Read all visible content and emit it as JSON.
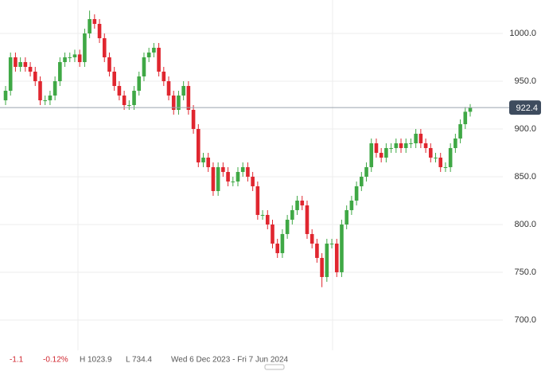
{
  "chart_data": {
    "type": "candlestick",
    "open": [
      930,
      940,
      975,
      965,
      970,
      965,
      960,
      950,
      930,
      930,
      935,
      950,
      970,
      975,
      975,
      978,
      970,
      1000,
      1015,
      1010,
      995,
      975,
      960,
      945,
      935,
      925,
      925,
      940,
      955,
      975,
      980,
      985,
      960,
      950,
      935,
      920,
      935,
      945,
      920,
      900,
      865,
      870,
      860,
      835,
      860,
      855,
      845,
      845,
      855,
      860,
      850,
      840,
      810,
      810,
      800,
      780,
      770,
      790,
      805,
      815,
      825,
      820,
      790,
      780,
      765,
      745,
      780,
      780,
      750,
      800,
      815,
      825,
      840,
      850,
      860,
      885,
      875,
      870,
      880,
      880,
      885,
      880,
      885,
      885,
      895,
      885,
      880,
      870,
      870,
      860,
      860,
      880,
      890,
      905,
      918
    ],
    "high": [
      945,
      980,
      980,
      975,
      975,
      970,
      965,
      955,
      935,
      940,
      955,
      975,
      980,
      980,
      983,
      983,
      1005,
      1023.9,
      1020,
      1015,
      1000,
      980,
      965,
      950,
      940,
      930,
      945,
      960,
      980,
      985,
      990,
      990,
      965,
      955,
      940,
      940,
      950,
      950,
      925,
      905,
      875,
      875,
      865,
      865,
      865,
      860,
      850,
      860,
      865,
      865,
      855,
      845,
      815,
      815,
      805,
      785,
      795,
      810,
      820,
      830,
      830,
      825,
      795,
      785,
      770,
      785,
      785,
      785,
      805,
      820,
      830,
      845,
      855,
      865,
      890,
      890,
      880,
      885,
      885,
      890,
      890,
      890,
      890,
      900,
      900,
      890,
      885,
      875,
      875,
      865,
      885,
      895,
      910,
      923,
      926
    ],
    "low": [
      925,
      935,
      960,
      960,
      960,
      955,
      945,
      925,
      925,
      925,
      930,
      945,
      965,
      970,
      970,
      965,
      965,
      995,
      1005,
      990,
      970,
      955,
      940,
      930,
      920,
      920,
      920,
      935,
      950,
      970,
      975,
      955,
      945,
      930,
      915,
      915,
      930,
      915,
      895,
      860,
      860,
      855,
      830,
      830,
      850,
      840,
      840,
      840,
      850,
      845,
      835,
      805,
      805,
      795,
      775,
      765,
      765,
      785,
      800,
      810,
      815,
      785,
      775,
      760,
      734.4,
      740,
      775,
      745,
      745,
      795,
      810,
      820,
      835,
      845,
      855,
      870,
      865,
      865,
      875,
      875,
      875,
      875,
      880,
      880,
      880,
      875,
      865,
      865,
      855,
      855,
      855,
      875,
      885,
      900,
      913
    ],
    "close": [
      940,
      975,
      965,
      970,
      965,
      960,
      950,
      930,
      930,
      935,
      950,
      970,
      975,
      975,
      978,
      970,
      1000,
      1015,
      1010,
      995,
      975,
      960,
      945,
      935,
      925,
      925,
      940,
      955,
      975,
      980,
      985,
      960,
      950,
      935,
      920,
      935,
      945,
      920,
      900,
      865,
      870,
      860,
      835,
      860,
      855,
      845,
      845,
      855,
      860,
      850,
      840,
      810,
      810,
      800,
      780,
      770,
      790,
      805,
      815,
      825,
      820,
      790,
      780,
      765,
      745,
      780,
      780,
      750,
      800,
      815,
      825,
      840,
      850,
      860,
      885,
      875,
      870,
      880,
      880,
      885,
      880,
      885,
      885,
      895,
      885,
      880,
      870,
      870,
      860,
      860,
      880,
      890,
      905,
      918,
      922.4
    ],
    "up_color": "#3fa845",
    "down_color": "#e0262f",
    "last": 922.4,
    "ylim": [
      668.3,
      1035
    ],
    "yticks": [
      {
        "value": 700,
        "label": "700.0"
      },
      {
        "value": 750,
        "label": "750.0"
      },
      {
        "value": 800,
        "label": "800.0"
      },
      {
        "value": 850,
        "label": "850.0"
      },
      {
        "value": 900,
        "label": "900.0"
      },
      {
        "value": 950,
        "label": "950.0"
      },
      {
        "value": 1000,
        "label": "1000.0"
      }
    ],
    "grid": true,
    "footer": {
      "change": "-1.1",
      "change_pct": "-0.12%",
      "high": "H 1023.9",
      "low": "L 734.4",
      "range": "Wed 6 Dec 2023 - Fri 7 Jun 2024"
    }
  }
}
